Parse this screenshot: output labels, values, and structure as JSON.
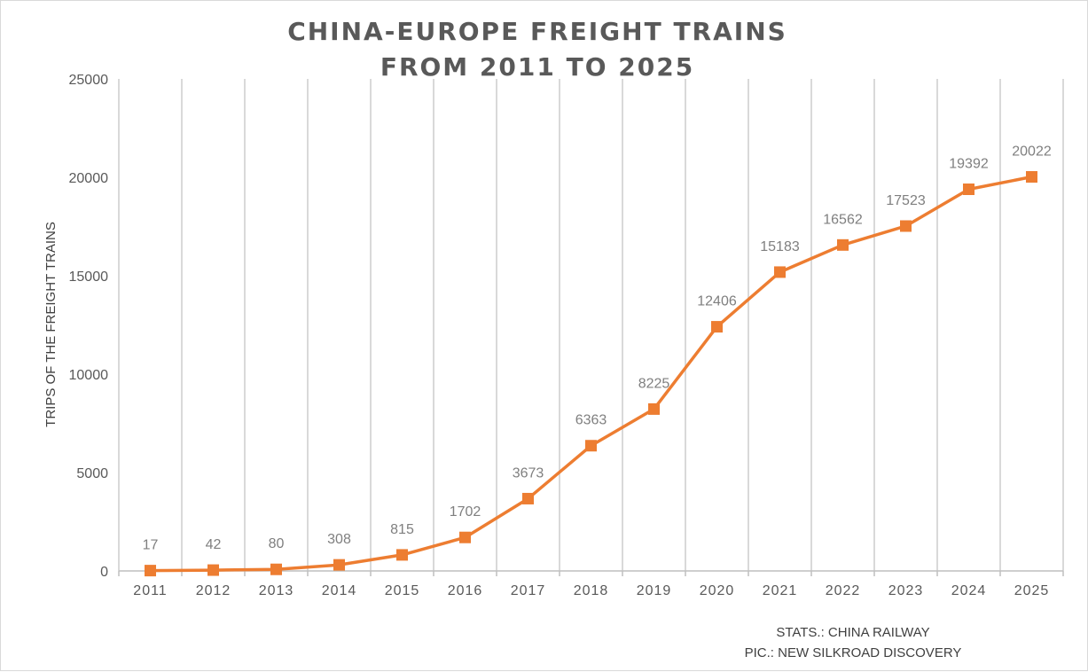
{
  "colors": {
    "series": "#ed7d31",
    "grid": "#d9d9d9",
    "axis": "#bfbfbf",
    "text": "#595959",
    "label": "#7f7f7f"
  },
  "chart_data": {
    "type": "line",
    "title": [
      "CHINA-EUROPE FREIGHT TRAINS",
      "FROM 2011 TO 2025"
    ],
    "xlabel": "",
    "ylabel": "TRIPS OF THE FREIGHT TRAINS",
    "ylim": [
      0,
      25000
    ],
    "yticks": [
      0,
      5000,
      10000,
      15000,
      20000,
      25000
    ],
    "categories": [
      "2011",
      "2012",
      "2013",
      "2014",
      "2015",
      "2016",
      "2017",
      "2018",
      "2019",
      "2020",
      "2021",
      "2022",
      "2023",
      "2024",
      "2025"
    ],
    "series": [
      {
        "values": [
          17,
          42,
          80,
          308,
          815,
          1702,
          3673,
          6363,
          8225,
          12406,
          15183,
          16562,
          17523,
          19392,
          20022
        ],
        "marker": "square",
        "color": "#ed7d31"
      }
    ],
    "data_labels": true,
    "grid": {
      "vertical": true,
      "horizontal": false
    },
    "legend": "none"
  },
  "footer": {
    "stats": "STATS.: CHINA RAILWAY",
    "pic": "PIC.: NEW SILKROAD DISCOVERY"
  }
}
